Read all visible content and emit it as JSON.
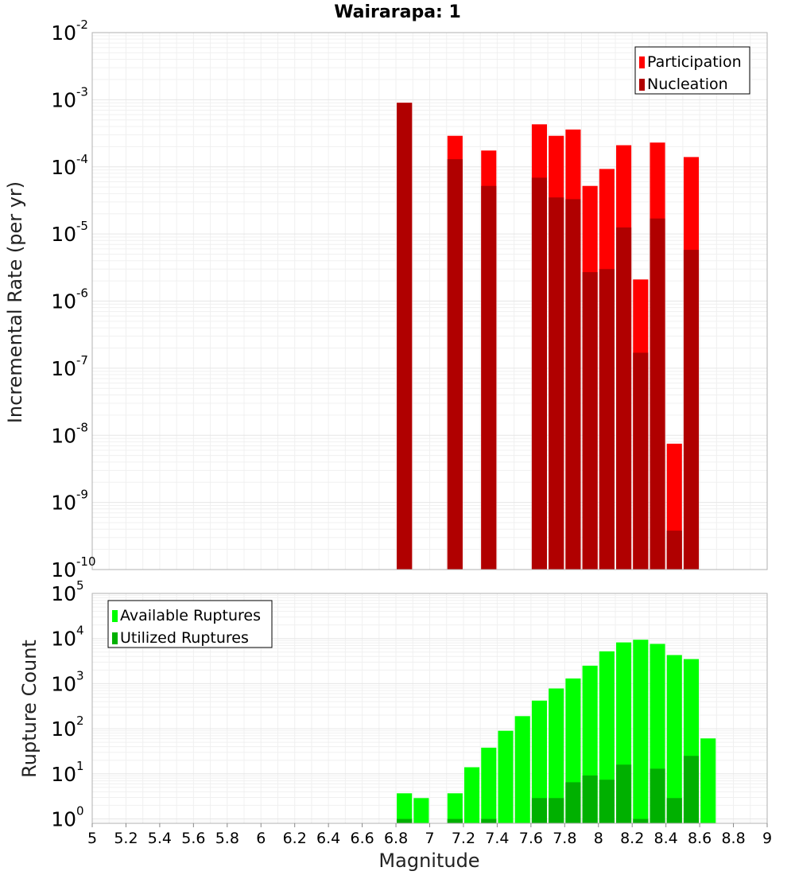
{
  "chart_data": [
    {
      "type": "bar",
      "title": "Wairarapa: 1",
      "xlabel": "",
      "ylabel": "Incremental Rate (per yr)",
      "yscale": "log",
      "ylim": [
        1e-10,
        0.01
      ],
      "xlim": [
        5,
        9
      ],
      "legend_position": "top-right",
      "series": [
        {
          "name": "Participation",
          "color": "#ff0000",
          "x": [
            6.85,
            7.15,
            7.35,
            7.65,
            7.75,
            7.85,
            7.95,
            8.05,
            8.15,
            8.25,
            8.35,
            8.45,
            8.55
          ],
          "values": [
            0.0009,
            0.00029,
            0.000175,
            0.00043,
            0.00029,
            0.00036,
            5.2e-05,
            9.3e-05,
            0.00021,
            2.1e-06,
            0.00023,
            7.5e-09,
            0.00014
          ]
        },
        {
          "name": "Nucleation",
          "color": "#b00000",
          "x": [
            6.85,
            7.15,
            7.35,
            7.65,
            7.75,
            7.85,
            7.95,
            8.05,
            8.15,
            8.25,
            8.35,
            8.45,
            8.55
          ],
          "values": [
            0.0009,
            0.00013,
            5.2e-05,
            6.9e-05,
            3.5e-05,
            3.3e-05,
            2.7e-06,
            3e-06,
            1.25e-05,
            1.7e-07,
            1.7e-05,
            3.8e-10,
            5.8e-06
          ]
        }
      ]
    },
    {
      "type": "bar",
      "title": "",
      "xlabel": "Magnitude",
      "ylabel": "Rupture Count",
      "yscale": "log",
      "ylim": [
        0.8,
        100000.0
      ],
      "xlim": [
        5,
        9
      ],
      "legend_position": "top-left",
      "x_ticks": [
        "5",
        "5.2",
        "5.4",
        "5.6",
        "5.8",
        "6",
        "6.2",
        "6.4",
        "6.6",
        "6.8",
        "7",
        "7.2",
        "7.4",
        "7.6",
        "7.8",
        "8",
        "8.2",
        "8.4",
        "8.6",
        "8.8",
        "9"
      ],
      "series": [
        {
          "name": "Available Ruptures",
          "color": "#00ff00",
          "x": [
            6.85,
            6.95,
            7.15,
            7.25,
            7.35,
            7.45,
            7.55,
            7.65,
            7.75,
            7.85,
            7.95,
            8.05,
            8.15,
            8.25,
            8.35,
            8.45,
            8.55,
            8.65
          ],
          "values": [
            3.7,
            2.9,
            3.7,
            14,
            38,
            90,
            190,
            420,
            780,
            1300,
            2500,
            5200,
            8200,
            9400,
            7600,
            4300,
            3500,
            61
          ]
        },
        {
          "name": "Utilized Ruptures",
          "color": "#00b000",
          "x": [
            6.85,
            7.15,
            7.35,
            7.65,
            7.75,
            7.85,
            7.95,
            8.05,
            8.15,
            8.25,
            8.35,
            8.45,
            8.55
          ],
          "values": [
            1,
            1,
            1,
            2.9,
            2.9,
            6.5,
            9.2,
            7.4,
            16,
            1,
            13,
            2.9,
            25
          ]
        }
      ]
    }
  ]
}
